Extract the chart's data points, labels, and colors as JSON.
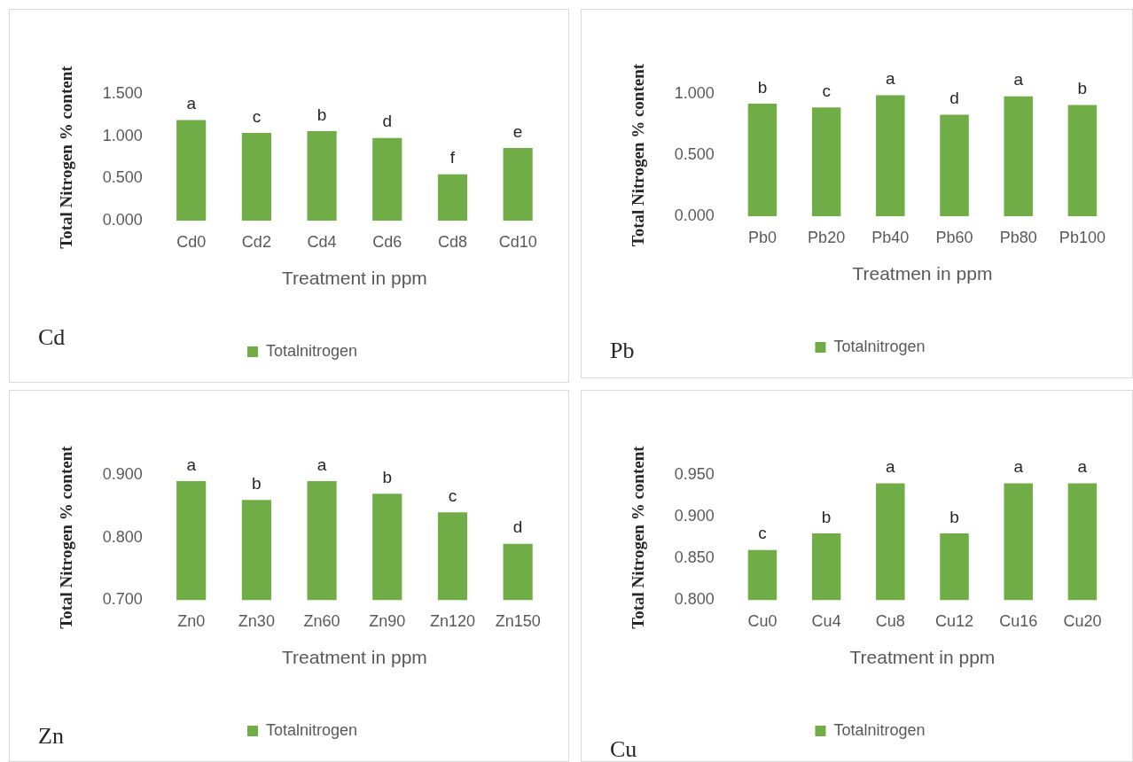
{
  "chart_data": [
    {
      "type": "bar",
      "xlabel": "Treatment in ppm",
      "ylabel": "Total Nitrogen % content",
      "categories": [
        "Cd0",
        "Cd2",
        "Cd4",
        "Cd6",
        "Cd8",
        "Cd10"
      ],
      "series": [
        {
          "name": "Totalnitrogen",
          "color": "#70ad47",
          "values": [
            1.19,
            1.04,
            1.06,
            0.98,
            0.55,
            0.86
          ]
        }
      ],
      "ylim": [
        0,
        1.5
      ],
      "yticks": [
        {
          "value": 0,
          "label": "0.000"
        },
        {
          "value": 0.5,
          "label": "0.500"
        },
        {
          "value": 1,
          "label": "1.000"
        },
        {
          "value": 1.5,
          "label": "1.500"
        }
      ],
      "grid": false,
      "legend": "bottom",
      "annotations": [
        {
          "text": "a",
          "x": "Cd0",
          "y": 1.19
        },
        {
          "text": "c",
          "x": "Cd2",
          "y": 1.04
        },
        {
          "text": "b",
          "x": "Cd4",
          "y": 1.06
        },
        {
          "text": "d",
          "x": "Cd6",
          "y": 0.98
        },
        {
          "text": "f",
          "x": "Cd8",
          "y": 0.55
        },
        {
          "text": "e",
          "x": "Cd10",
          "y": 0.86
        },
        "Cd"
      ]
    },
    {
      "type": "bar",
      "xlabel": "Treatmen in ppm",
      "ylabel": "Total Nitrogen % content",
      "categories": [
        "Pb0",
        "Pb20",
        "Pb40",
        "Pb60",
        "Pb80",
        "Pb100"
      ],
      "series": [
        {
          "name": "Totalnitrogen",
          "color": "#70ad47",
          "values": [
            0.92,
            0.89,
            0.99,
            0.83,
            0.98,
            0.91
          ]
        }
      ],
      "ylim": [
        0,
        1
      ],
      "yticks": [
        {
          "value": 0,
          "label": "0.000"
        },
        {
          "value": 0.5,
          "label": "0.500"
        },
        {
          "value": 1,
          "label": "1.000"
        }
      ],
      "grid": false,
      "legend": "bottom",
      "annotations": [
        {
          "text": "b",
          "x": "Pb0",
          "y": 0.92
        },
        {
          "text": "c",
          "x": "Pb20",
          "y": 0.89
        },
        {
          "text": "a",
          "x": "Pb40",
          "y": 0.99
        },
        {
          "text": "d",
          "x": "Pb60",
          "y": 0.83
        },
        {
          "text": "a",
          "x": "Pb80",
          "y": 0.98
        },
        {
          "text": "b",
          "x": "Pb100",
          "y": 0.91
        },
        "Pb"
      ]
    },
    {
      "type": "bar",
      "xlabel": "Treatment in ppm",
      "ylabel": "Total Nitrogen % content",
      "categories": [
        "Zn0",
        "Zn30",
        "Zn60",
        "Zn90",
        "Zn120",
        "Zn150"
      ],
      "series": [
        {
          "name": "Totalnitrogen",
          "color": "#70ad47",
          "values": [
            0.89,
            0.86,
            0.89,
            0.87,
            0.84,
            0.79
          ]
        }
      ],
      "ylim": [
        0.7,
        0.9
      ],
      "yticks": [
        {
          "value": 0.7,
          "label": "0.700"
        },
        {
          "value": 0.8,
          "label": "0.800"
        },
        {
          "value": 0.9,
          "label": "0.900"
        }
      ],
      "grid": false,
      "legend": "bottom",
      "annotations": [
        {
          "text": "a",
          "x": "Zn0",
          "y": 0.89
        },
        {
          "text": "b",
          "x": "Zn30",
          "y": 0.86
        },
        {
          "text": "a",
          "x": "Zn60",
          "y": 0.89
        },
        {
          "text": "b",
          "x": "Zn90",
          "y": 0.87
        },
        {
          "text": "c",
          "x": "Zn120",
          "y": 0.84
        },
        {
          "text": "d",
          "x": "Zn150",
          "y": 0.79
        },
        "Zn"
      ]
    },
    {
      "type": "bar",
      "xlabel": "Treatment in ppm",
      "ylabel": "Total Nitrogen % content",
      "categories": [
        "Cu0",
        "Cu4",
        "Cu8",
        "Cu12",
        "Cu16",
        "Cu20"
      ],
      "series": [
        {
          "name": "Totalnitrogen",
          "color": "#70ad47",
          "values": [
            0.86,
            0.88,
            0.94,
            0.88,
            0.94,
            0.94
          ]
        }
      ],
      "ylim": [
        0.8,
        0.95
      ],
      "yticks": [
        {
          "value": 0.8,
          "label": "0.800"
        },
        {
          "value": 0.85,
          "label": "0.850"
        },
        {
          "value": 0.9,
          "label": "0.900"
        },
        {
          "value": 0.95,
          "label": "0.950"
        }
      ],
      "grid": false,
      "legend": "bottom",
      "annotations": [
        {
          "text": "c",
          "x": "Cu0",
          "y": 0.86
        },
        {
          "text": "b",
          "x": "Cu4",
          "y": 0.88
        },
        {
          "text": "a",
          "x": "Cu8",
          "y": 0.94
        },
        {
          "text": "b",
          "x": "Cu12",
          "y": 0.88
        },
        {
          "text": "a",
          "x": "Cu16",
          "y": 0.94
        },
        {
          "text": "a",
          "x": "Cu20",
          "y": 0.94
        },
        "Cu"
      ]
    }
  ]
}
